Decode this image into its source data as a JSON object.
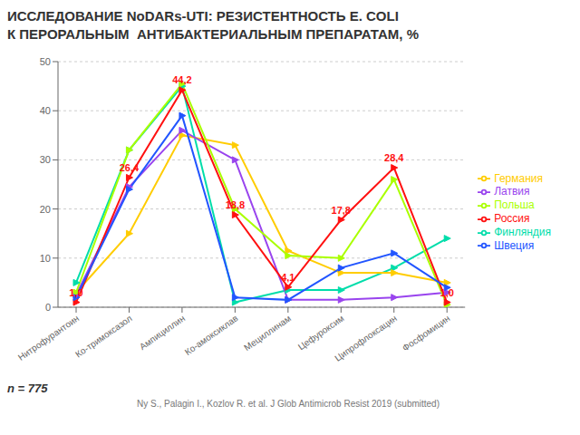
{
  "chart_data": {
    "type": "line",
    "title": "ИССЛЕДОВАНИЕ NoDARs-UTI: РЕЗИСТЕНТНОСТЬ E. COLI",
    "subtitle": "К ПЕРОРАЛЬНЫМ  АНТИБАКТЕРИАЛЬНЫМ ПРЕПАРАТАМ, %",
    "categories": [
      "Нитрофурантоин",
      "Ко-тримоксазол",
      "Ампициллин",
      "Ко-амоксиклав",
      "Мециллинам",
      "Цефуроксим",
      "Ципрофлоксацин",
      "Фосфомицин"
    ],
    "series": [
      {
        "name": "Финляндия",
        "color": "#00ddaa",
        "values": [
          5.0,
          32.0,
          45.0,
          1.0,
          3.5,
          3.5,
          8.0,
          14.0
        ]
      },
      {
        "name": "Германия",
        "color": "#ffcc00",
        "values": [
          3.0,
          15.0,
          35.0,
          33.0,
          11.5,
          7.0,
          7.0,
          5.0
        ]
      },
      {
        "name": "Латвия",
        "color": "#9944ee",
        "values": [
          2.5,
          24.5,
          36.0,
          30.0,
          1.5,
          1.5,
          2.0,
          3.0
        ]
      },
      {
        "name": "Польша",
        "color": "#aaff00",
        "values": [
          3.0,
          32.0,
          45.5,
          20.0,
          10.5,
          10.0,
          26.0,
          0.5
        ]
      },
      {
        "name": "Россия",
        "color": "#ff1111",
        "values": [
          1.0,
          26.4,
          44.2,
          18.8,
          4.1,
          17.8,
          28.4,
          1.0
        ]
      },
      {
        "name": "Швеция",
        "color": "#2255ff",
        "values": [
          2.0,
          24.0,
          39.0,
          2.0,
          1.5,
          8.0,
          11.0,
          4.0
        ]
      }
    ],
    "ylim": [
      0,
      50
    ],
    "yticks": [
      0,
      10,
      20,
      30,
      40,
      50
    ],
    "grid": true,
    "legend": "right",
    "marker": "triangle",
    "annotations": [
      {
        "text": "1,0",
        "x": "Нитрофурантоин",
        "y": 1.0,
        "color": "#ff1111"
      },
      {
        "text": "26,4",
        "x": "Ко-тримоксазол",
        "y": 26.4,
        "color": "#ff1111"
      },
      {
        "text": "44,2",
        "x": "Ампициллин",
        "y": 44.2,
        "color": "#ff1111"
      },
      {
        "text": "18,8",
        "x": "Ко-амоксиклав",
        "y": 18.8,
        "color": "#ff1111"
      },
      {
        "text": "4,1",
        "x": "Мециллинам",
        "y": 4.1,
        "color": "#ff1111"
      },
      {
        "text": "17,8",
        "x": "Цефуроксим",
        "y": 17.8,
        "color": "#ff1111"
      },
      {
        "text": "28,4",
        "x": "Ципрофлоксацин",
        "y": 28.4,
        "color": "#ff1111"
      },
      {
        "text": "1,0",
        "x": "Фосфомицин",
        "y": 1.0,
        "color": "#ff1111"
      },
      {
        "text": "n = 775"
      },
      {
        "text": "Ny S., Palagin I., Kozlov R. et al. J Glob Antimicrob Resist 2019 (submitted)"
      }
    ]
  }
}
